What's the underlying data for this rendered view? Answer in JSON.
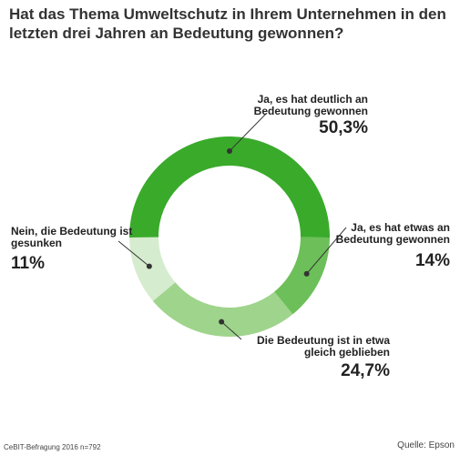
{
  "chart_data": {
    "type": "pie",
    "donut": true,
    "title": "Hat das Thema Umweltschutz in Ihrem Unternehmen in den letzten drei Jahren an Bedeutung gewonnen?",
    "slices": [
      {
        "label": "Ja, es hat deutlich an Bedeutung gewonnen",
        "value": 50.3,
        "value_label": "50,3%",
        "color": "#3aaa2b"
      },
      {
        "label": "Ja, es hat etwas an Bedeutung gewonnen",
        "value": 14,
        "value_label": "14%",
        "color": "#6dbf59"
      },
      {
        "label": "Die Bedeutung ist in etwa gleich geblieben",
        "value": 24.7,
        "value_label": "24,7%",
        "color": "#9fd48c"
      },
      {
        "label": "Nein, die Bedeutung ist gesunken",
        "value": 11,
        "value_label": "11%",
        "color": "#d6ecce"
      }
    ]
  },
  "footer": {
    "survey": "CeBIT-Befragung 2016 n=792",
    "source": "Quelle: Epson"
  }
}
